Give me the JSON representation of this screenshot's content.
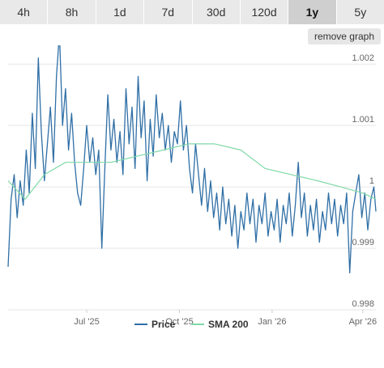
{
  "tabs": [
    {
      "label": "4h",
      "active": false
    },
    {
      "label": "8h",
      "active": false
    },
    {
      "label": "1d",
      "active": false
    },
    {
      "label": "7d",
      "active": false
    },
    {
      "label": "30d",
      "active": false
    },
    {
      "label": "120d",
      "active": false
    },
    {
      "label": "1y",
      "active": true
    },
    {
      "label": "5y",
      "active": false
    }
  ],
  "remove_graph_label": "remove graph",
  "colors": {
    "price": "#2f6fa6",
    "sma": "#7fd9a8",
    "grid": "#e6e6e6",
    "tab_bg": "#e9e9e9",
    "tab_active": "#cfcfcf"
  },
  "chart_data": {
    "type": "line",
    "x_range": [
      "2025-04-14",
      "2026-04-14"
    ],
    "ylim": [
      0.998,
      1.0022
    ],
    "y_ticks": [
      {
        "value": 0.998,
        "label": "0.998"
      },
      {
        "value": 0.999,
        "label": "0.999"
      },
      {
        "value": 1.0,
        "label": "1"
      },
      {
        "value": 1.001,
        "label": "1.001"
      },
      {
        "value": 1.002,
        "label": "1.002"
      }
    ],
    "x_ticks": [
      {
        "date": "2025-07-01",
        "label": "Jul '25"
      },
      {
        "date": "2025-10-01",
        "label": "Oct '25"
      },
      {
        "date": "2026-01-01",
        "label": "Jan '26"
      },
      {
        "date": "2026-04-01",
        "label": "Apr '26"
      }
    ],
    "grid": true,
    "legend_position": "bottom-center",
    "series": [
      {
        "name": "Price",
        "color": "#2f6fa6",
        "points": [
          [
            "2025-04-14",
            0.9987
          ],
          [
            "2025-04-17",
            0.9998
          ],
          [
            "2025-04-20",
            1.0002
          ],
          [
            "2025-04-23",
            0.9995
          ],
          [
            "2025-04-26",
            1.0001
          ],
          [
            "2025-04-29",
            0.9997
          ],
          [
            "2025-05-02",
            1.0006
          ],
          [
            "2025-05-05",
            0.9999
          ],
          [
            "2025-05-08",
            1.0012
          ],
          [
            "2025-05-11",
            1.0003
          ],
          [
            "2025-05-14",
            1.0021
          ],
          [
            "2025-05-17",
            1.0009
          ],
          [
            "2025-05-20",
            1.0001
          ],
          [
            "2025-05-23",
            1.0007
          ],
          [
            "2025-05-26",
            1.0013
          ],
          [
            "2025-05-29",
            1.0004
          ],
          [
            "2025-06-01",
            1.0018
          ],
          [
            "2025-06-04",
            1.0025
          ],
          [
            "2025-06-07",
            1.001
          ],
          [
            "2025-06-10",
            1.0016
          ],
          [
            "2025-06-13",
            1.0006
          ],
          [
            "2025-06-16",
            1.0012
          ],
          [
            "2025-06-19",
            1.0004
          ],
          [
            "2025-06-22",
            0.9999
          ],
          [
            "2025-06-25",
            0.9997
          ],
          [
            "2025-06-28",
            1.0003
          ],
          [
            "2025-07-01",
            1.001
          ],
          [
            "2025-07-04",
            1.0004
          ],
          [
            "2025-07-07",
            1.0008
          ],
          [
            "2025-07-10",
            1.0002
          ],
          [
            "2025-07-13",
            1.0006
          ],
          [
            "2025-07-16",
            0.999
          ],
          [
            "2025-07-19",
            1.0003
          ],
          [
            "2025-07-22",
            1.0015
          ],
          [
            "2025-07-25",
            1.0006
          ],
          [
            "2025-07-28",
            1.0011
          ],
          [
            "2025-07-31",
            1.0004
          ],
          [
            "2025-08-03",
            1.0009
          ],
          [
            "2025-08-06",
            1.0002
          ],
          [
            "2025-08-09",
            1.0016
          ],
          [
            "2025-08-12",
            1.0007
          ],
          [
            "2025-08-15",
            1.0013
          ],
          [
            "2025-08-18",
            1.0003
          ],
          [
            "2025-08-21",
            1.0018
          ],
          [
            "2025-08-24",
            1.0008
          ],
          [
            "2025-08-27",
            1.0014
          ],
          [
            "2025-08-30",
            1.0001
          ],
          [
            "2025-09-02",
            1.0011
          ],
          [
            "2025-09-05",
            1.0005
          ],
          [
            "2025-09-08",
            1.0015
          ],
          [
            "2025-09-11",
            1.0008
          ],
          [
            "2025-09-14",
            1.0012
          ],
          [
            "2025-09-17",
            1.0006
          ],
          [
            "2025-09-20",
            1.001
          ],
          [
            "2025-09-23",
            1.0004
          ],
          [
            "2025-09-26",
            1.0009
          ],
          [
            "2025-09-29",
            1.0007
          ],
          [
            "2025-10-02",
            1.0014
          ],
          [
            "2025-10-05",
            1.0006
          ],
          [
            "2025-10-08",
            1.001
          ],
          [
            "2025-10-11",
            1.0003
          ],
          [
            "2025-10-14",
            0.9999
          ],
          [
            "2025-10-17",
            1.0007
          ],
          [
            "2025-10-20",
            1.0002
          ],
          [
            "2025-10-23",
            0.9997
          ],
          [
            "2025-10-26",
            1.0003
          ],
          [
            "2025-10-29",
            0.9996
          ],
          [
            "2025-11-01",
            1.0001
          ],
          [
            "2025-11-04",
            0.9995
          ],
          [
            "2025-11-07",
            0.9999
          ],
          [
            "2025-11-10",
            0.9993
          ],
          [
            "2025-11-13",
            1.0
          ],
          [
            "2025-11-16",
            0.9994
          ],
          [
            "2025-11-19",
            0.9998
          ],
          [
            "2025-11-22",
            0.9992
          ],
          [
            "2025-11-25",
            0.9997
          ],
          [
            "2025-11-28",
            0.999
          ],
          [
            "2025-12-01",
            0.9996
          ],
          [
            "2025-12-04",
            0.9993
          ],
          [
            "2025-12-07",
            0.9999
          ],
          [
            "2025-12-10",
            0.9994
          ],
          [
            "2025-12-13",
            0.9998
          ],
          [
            "2025-12-16",
            0.9991
          ],
          [
            "2025-12-19",
            0.9997
          ],
          [
            "2025-12-22",
            0.9994
          ],
          [
            "2025-12-25",
            0.9999
          ],
          [
            "2025-12-28",
            0.9992
          ],
          [
            "2025-12-31",
            0.9996
          ],
          [
            "2026-01-03",
            0.9993
          ],
          [
            "2026-01-06",
            0.9998
          ],
          [
            "2026-01-09",
            0.9991
          ],
          [
            "2026-01-12",
            0.9997
          ],
          [
            "2026-01-15",
            0.9994
          ],
          [
            "2026-01-18",
            0.9999
          ],
          [
            "2026-01-21",
            0.9992
          ],
          [
            "2026-01-24",
            0.9997
          ],
          [
            "2026-01-27",
            1.0004
          ],
          [
            "2026-01-30",
            0.9995
          ],
          [
            "2026-02-02",
            0.9999
          ],
          [
            "2026-02-05",
            0.9992
          ],
          [
            "2026-02-08",
            0.9997
          ],
          [
            "2026-02-11",
            0.9993
          ],
          [
            "2026-02-14",
            0.9998
          ],
          [
            "2026-02-17",
            0.9991
          ],
          [
            "2026-02-20",
            0.9996
          ],
          [
            "2026-02-23",
            0.9993
          ],
          [
            "2026-02-26",
            0.9999
          ],
          [
            "2026-03-01",
            0.9994
          ],
          [
            "2026-03-04",
            0.9998
          ],
          [
            "2026-03-07",
            0.9992
          ],
          [
            "2026-03-10",
            0.9997
          ],
          [
            "2026-03-13",
            0.9994
          ],
          [
            "2026-03-16",
            0.9999
          ],
          [
            "2026-03-19",
            0.9986
          ],
          [
            "2026-03-22",
            0.9996
          ],
          [
            "2026-03-25",
            0.9999
          ],
          [
            "2026-03-28",
            1.0002
          ],
          [
            "2026-03-31",
            0.9995
          ],
          [
            "2026-04-03",
            0.9999
          ],
          [
            "2026-04-06",
            0.9993
          ],
          [
            "2026-04-09",
            0.9998
          ],
          [
            "2026-04-12",
            1.0
          ],
          [
            "2026-04-14",
            0.9996
          ]
        ]
      },
      {
        "name": "SMA 200",
        "color": "#7fd9a8",
        "points": [
          [
            "2025-04-14",
            1.0001
          ],
          [
            "2025-05-01",
            0.9998
          ],
          [
            "2025-05-20",
            1.0002
          ],
          [
            "2025-06-10",
            1.0004
          ],
          [
            "2025-07-01",
            1.0004
          ],
          [
            "2025-07-25",
            1.0004
          ],
          [
            "2025-08-20",
            1.0005
          ],
          [
            "2025-09-15",
            1.0006
          ],
          [
            "2025-10-10",
            1.0007
          ],
          [
            "2025-11-05",
            1.0007
          ],
          [
            "2025-12-01",
            1.0006
          ],
          [
            "2025-12-25",
            1.0003
          ],
          [
            "2026-01-20",
            1.0002
          ],
          [
            "2026-02-15",
            1.0001
          ],
          [
            "2026-03-10",
            1.0
          ],
          [
            "2026-04-01",
            0.9999
          ],
          [
            "2026-04-14",
            0.9998
          ]
        ]
      }
    ]
  }
}
